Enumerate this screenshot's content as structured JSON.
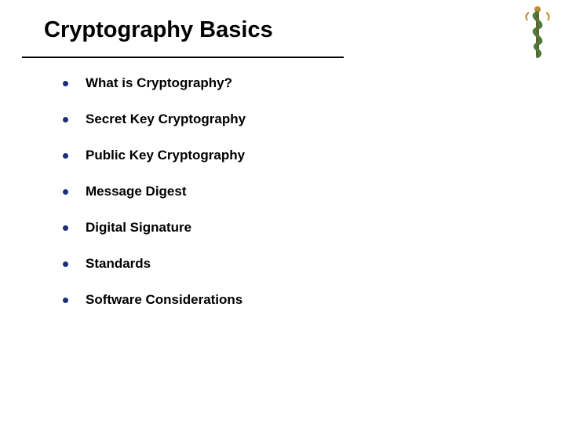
{
  "slide": {
    "title": "Cryptography Basics",
    "title_fontsize": 29,
    "title_color": "#000000",
    "rule_color": "#000000",
    "background_color": "#ffffff",
    "bullets": {
      "items": [
        {
          "label": "What is Cryptography?"
        },
        {
          "label": "Secret Key Cryptography"
        },
        {
          "label": "Public Key Cryptography"
        },
        {
          "label": "Message Digest"
        },
        {
          "label": "Digital Signature"
        },
        {
          "label": "Standards"
        },
        {
          "label": "Software Considerations"
        }
      ],
      "fontsize": 17,
      "font_weight": "bold",
      "text_color": "#000000",
      "dot_color": "#1b2f7a",
      "dot_size": 7,
      "row_gap": 26,
      "indent_gap": 22
    },
    "logo": {
      "staff_color": "#6b5a2a",
      "snake_color": "#4a7a3a",
      "accent_color": "#c08a2e"
    }
  }
}
